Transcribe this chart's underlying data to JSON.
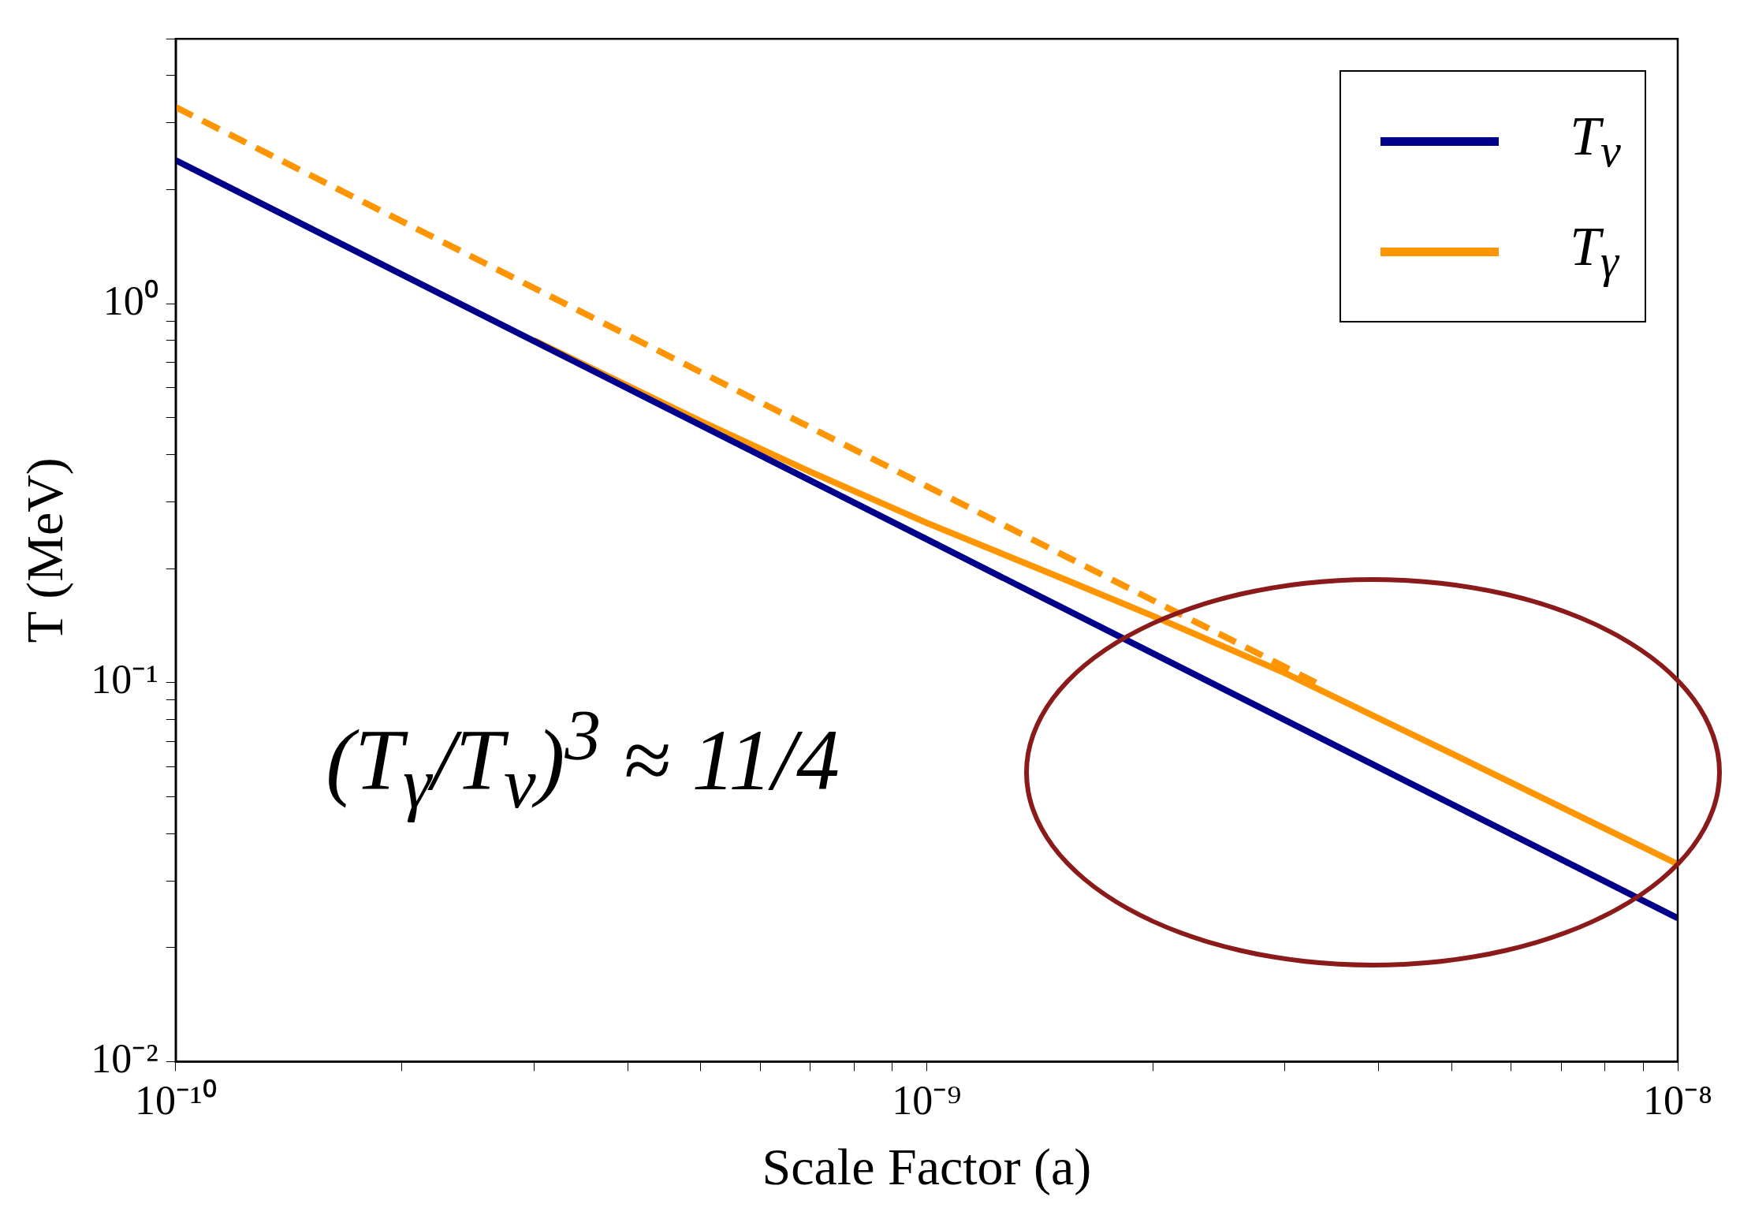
{
  "chart_data": {
    "type": "line",
    "xlabel": "Scale Factor (a)",
    "ylabel": "T (MeV)",
    "log": "xy",
    "grid": false,
    "legend": "top right",
    "marker": "none",
    "annotations": [
      "(T$_{γ}$/T$_{ν}$)$^{3}$ ≈ 11/4"
    ],
    "xlim": [
      1e-10,
      1e-08
    ],
    "ylim": [
      0.01,
      5
    ],
    "xticks": [
      {
        "value": 1e-10,
        "label": "10⁻¹⁰"
      },
      {
        "value": 2e-10,
        "label": null
      },
      {
        "value": 3e-10,
        "label": null
      },
      {
        "value": 4e-10,
        "label": null
      },
      {
        "value": 5e-10,
        "label": null
      },
      {
        "value": 6e-10,
        "label": null
      },
      {
        "value": 7e-10,
        "label": null
      },
      {
        "value": 8e-10,
        "label": null
      },
      {
        "value": 9e-10,
        "label": null
      },
      {
        "value": 1e-09,
        "label": "10⁻⁹"
      },
      {
        "value": 2e-09,
        "label": null
      },
      {
        "value": 3e-09,
        "label": null
      },
      {
        "value": 4e-09,
        "label": null
      },
      {
        "value": 5e-09,
        "label": null
      },
      {
        "value": 6e-09,
        "label": null
      },
      {
        "value": 7e-09,
        "label": null
      },
      {
        "value": 8e-09,
        "label": null
      },
      {
        "value": 9e-09,
        "label": null
      },
      {
        "value": 1e-08,
        "label": "10⁻⁸"
      }
    ],
    "yticks": [
      {
        "value": 0.01,
        "label": "10⁻²"
      },
      {
        "value": 0.02,
        "label": null
      },
      {
        "value": 0.03,
        "label": null
      },
      {
        "value": 0.04,
        "label": null
      },
      {
        "value": 0.05,
        "label": null
      },
      {
        "value": 0.06,
        "label": null
      },
      {
        "value": 0.07,
        "label": null
      },
      {
        "value": 0.08,
        "label": null
      },
      {
        "value": 0.09,
        "label": null
      },
      {
        "value": 0.1,
        "label": "10⁻¹"
      },
      {
        "value": 0.2,
        "label": null
      },
      {
        "value": 0.3,
        "label": null
      },
      {
        "value": 0.4,
        "label": null
      },
      {
        "value": 0.5,
        "label": null
      },
      {
        "value": 0.6,
        "label": null
      },
      {
        "value": 0.7,
        "label": null
      },
      {
        "value": 0.8,
        "label": null
      },
      {
        "value": 0.9,
        "label": null
      },
      {
        "value": 1,
        "label": "10⁰"
      },
      {
        "value": 2,
        "label": null
      },
      {
        "value": 3,
        "label": null
      },
      {
        "value": 4,
        "label": null
      },
      {
        "value": 5,
        "label": null
      }
    ],
    "series": [
      {
        "name": "T$_{ν}$",
        "color": "#00008b",
        "x": [
          1e-10,
          1e-09,
          1e-08
        ],
        "values": [
          2.39,
          0.239,
          0.0239
        ]
      },
      {
        "name": "T$_{γ}$",
        "color": "#ff9500",
        "x": [
          3e-10,
          5e-10,
          7e-10,
          1e-09,
          1.5e-09,
          2e-09,
          3e-09,
          5e-09,
          1e-08
        ],
        "values": [
          0.8,
          0.49,
          0.36,
          0.264,
          0.19,
          0.15,
          0.106,
          0.065,
          0.0332
        ]
      },
      {
        "color": "#ff9500",
        "line_style": "dashed",
        "x": [
          1e-10,
          1e-09,
          3.4e-09
        ],
        "values": [
          3.3,
          0.33,
          0.097
        ]
      }
    ]
  }
}
